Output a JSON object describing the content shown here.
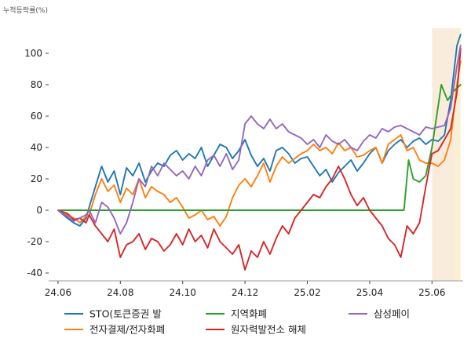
{
  "chart_data": {
    "type": "line",
    "ylabel": "누적등락률(%)",
    "xlabel": "",
    "title": "",
    "ylim": [
      -45,
      120
    ],
    "y_ticks": [
      -40,
      -20,
      0,
      20,
      40,
      60,
      80,
      100
    ],
    "x_ticks": [
      {
        "label": "24.06",
        "t": 0
      },
      {
        "label": "24.08",
        "t": 2
      },
      {
        "label": "24.10",
        "t": 4
      },
      {
        "label": "24.12",
        "t": 6
      },
      {
        "label": "25.02",
        "t": 8
      },
      {
        "label": "25.04",
        "t": 10
      },
      {
        "label": "25.06",
        "t": 12
      }
    ],
    "x_range": [
      -0.3,
      13.0
    ],
    "highlight_bands": [
      {
        "start": 12.0,
        "end": 12.72,
        "color": "#f9ecdc"
      },
      {
        "start": 12.72,
        "end": 12.92,
        "color": "#fbf1d2"
      }
    ],
    "legend_position": "bottom",
    "series": [
      {
        "name": "STO(토큰증권 발",
        "color": "#1f77b4",
        "x": [
          0,
          0.3,
          0.5,
          0.7,
          0.9,
          1.0,
          1.2,
          1.4,
          1.6,
          1.8,
          2.0,
          2.2,
          2.4,
          2.6,
          2.8,
          3.0,
          3.2,
          3.4,
          3.6,
          3.8,
          4.0,
          4.2,
          4.4,
          4.6,
          4.8,
          5.0,
          5.2,
          5.4,
          5.6,
          5.8,
          6.0,
          6.2,
          6.4,
          6.6,
          6.8,
          7.0,
          7.2,
          7.4,
          7.6,
          7.8,
          8.0,
          8.2,
          8.4,
          8.6,
          8.8,
          9.0,
          9.2,
          9.4,
          9.6,
          9.8,
          10.0,
          10.2,
          10.4,
          10.6,
          10.8,
          11.0,
          11.2,
          11.4,
          11.6,
          11.8,
          12.0,
          12.2,
          12.4,
          12.6,
          12.8,
          12.92
        ],
        "y": [
          0,
          -5,
          -8,
          -10,
          -5,
          2,
          15,
          28,
          18,
          25,
          10,
          27,
          22,
          30,
          18,
          25,
          30,
          28,
          35,
          38,
          32,
          36,
          33,
          40,
          28,
          35,
          42,
          40,
          33,
          38,
          45,
          35,
          28,
          33,
          25,
          38,
          40,
          36,
          30,
          33,
          34,
          28,
          22,
          26,
          18,
          24,
          28,
          32,
          25,
          30,
          36,
          40,
          30,
          38,
          42,
          45,
          40,
          44,
          46,
          42,
          45,
          44,
          48,
          70,
          105,
          112
        ]
      },
      {
        "name": "전자결제/전자화폐",
        "color": "#ff7f0e",
        "x": [
          0,
          0.3,
          0.5,
          0.7,
          0.9,
          1.0,
          1.2,
          1.4,
          1.6,
          1.8,
          2.0,
          2.2,
          2.4,
          2.6,
          2.8,
          3.0,
          3.2,
          3.4,
          3.6,
          3.8,
          4.0,
          4.2,
          4.4,
          4.6,
          4.8,
          5.0,
          5.2,
          5.4,
          5.6,
          5.8,
          6.0,
          6.2,
          6.4,
          6.6,
          6.8,
          7.0,
          7.2,
          7.4,
          7.6,
          7.8,
          8.0,
          8.2,
          8.4,
          8.6,
          8.8,
          9.0,
          9.2,
          9.4,
          9.6,
          9.8,
          10.0,
          10.2,
          10.4,
          10.6,
          10.8,
          11.0,
          11.2,
          11.4,
          11.6,
          11.8,
          12.0,
          12.2,
          12.4,
          12.6,
          12.8,
          12.92
        ],
        "y": [
          0,
          -3,
          -5,
          -8,
          -4,
          -3,
          10,
          20,
          12,
          16,
          5,
          14,
          10,
          20,
          8,
          15,
          12,
          10,
          5,
          8,
          2,
          -5,
          -3,
          0,
          -6,
          -4,
          -10,
          -4,
          8,
          16,
          20,
          15,
          22,
          30,
          18,
          28,
          34,
          30,
          33,
          36,
          38,
          42,
          38,
          40,
          36,
          43,
          38,
          40,
          34,
          35,
          38,
          40,
          30,
          42,
          45,
          48,
          38,
          40,
          32,
          30,
          30,
          28,
          32,
          45,
          80,
          95
        ]
      },
      {
        "name": "지역화폐",
        "color": "#2ca02c",
        "x": [
          0,
          1,
          2,
          3,
          4,
          5,
          6,
          7,
          8,
          9,
          10,
          11.1,
          11.25,
          11.4,
          11.6,
          11.8,
          12.0,
          12.3,
          12.5,
          12.7,
          12.92
        ],
        "y": [
          0,
          0,
          0,
          0,
          0,
          0,
          0,
          0,
          0,
          0,
          0,
          0,
          32,
          20,
          18,
          22,
          40,
          80,
          70,
          76,
          80
        ]
      },
      {
        "name": "원자력발전소 해체",
        "color": "#d62728",
        "x": [
          0,
          0.3,
          0.5,
          0.7,
          0.9,
          1.0,
          1.2,
          1.4,
          1.6,
          1.8,
          2.0,
          2.2,
          2.4,
          2.6,
          2.8,
          3.0,
          3.2,
          3.4,
          3.6,
          3.8,
          4.0,
          4.2,
          4.4,
          4.6,
          4.8,
          5.0,
          5.2,
          5.4,
          5.6,
          5.8,
          6.0,
          6.2,
          6.4,
          6.6,
          6.8,
          7.0,
          7.2,
          7.4,
          7.6,
          7.8,
          8.0,
          8.2,
          8.4,
          8.6,
          8.8,
          9.0,
          9.2,
          9.4,
          9.6,
          9.8,
          10.0,
          10.2,
          10.4,
          10.6,
          10.8,
          11.0,
          11.2,
          11.4,
          11.6,
          11.8,
          12.0,
          12.2,
          12.4,
          12.6,
          12.8,
          12.92
        ],
        "y": [
          0,
          -2,
          -6,
          -5,
          -8,
          -3,
          -10,
          -15,
          -20,
          -12,
          -30,
          -22,
          -20,
          -15,
          -25,
          -18,
          -20,
          -26,
          -22,
          -15,
          -22,
          -12,
          -20,
          -16,
          -24,
          -12,
          -20,
          -24,
          -28,
          -22,
          -38,
          -26,
          -30,
          -20,
          -28,
          -18,
          -10,
          -15,
          -5,
          0,
          5,
          10,
          8,
          15,
          20,
          28,
          20,
          10,
          3,
          8,
          0,
          -5,
          -10,
          -18,
          -22,
          -30,
          -10,
          -15,
          -8,
          15,
          36,
          38,
          45,
          52,
          75,
          103
        ]
      },
      {
        "name": "삼성페이",
        "color": "#9467bd",
        "x": [
          0,
          0.3,
          0.5,
          0.7,
          0.9,
          1.0,
          1.2,
          1.4,
          1.6,
          1.8,
          2.0,
          2.2,
          2.4,
          2.6,
          2.8,
          3.0,
          3.2,
          3.4,
          3.6,
          3.8,
          4.0,
          4.2,
          4.4,
          4.6,
          4.8,
          5.0,
          5.2,
          5.4,
          5.6,
          5.8,
          6.0,
          6.2,
          6.4,
          6.6,
          6.8,
          7.0,
          7.2,
          7.4,
          7.6,
          7.8,
          8.0,
          8.2,
          8.4,
          8.6,
          8.8,
          9.0,
          9.2,
          9.4,
          9.6,
          9.8,
          10.0,
          10.2,
          10.4,
          10.6,
          10.8,
          11.0,
          11.2,
          11.4,
          11.6,
          11.8,
          12.0,
          12.2,
          12.4,
          12.6,
          12.8,
          12.92
        ],
        "y": [
          0,
          -4,
          -7,
          -5,
          -3,
          0,
          -8,
          5,
          2,
          -5,
          -15,
          -8,
          5,
          20,
          15,
          28,
          22,
          30,
          26,
          22,
          25,
          20,
          28,
          22,
          32,
          35,
          28,
          36,
          26,
          32,
          55,
          60,
          55,
          52,
          58,
          52,
          55,
          50,
          48,
          46,
          42,
          45,
          40,
          48,
          44,
          42,
          45,
          40,
          38,
          44,
          48,
          46,
          52,
          50,
          53,
          54,
          52,
          50,
          48,
          53,
          52,
          53,
          54,
          65,
          92,
          105
        ]
      }
    ]
  }
}
